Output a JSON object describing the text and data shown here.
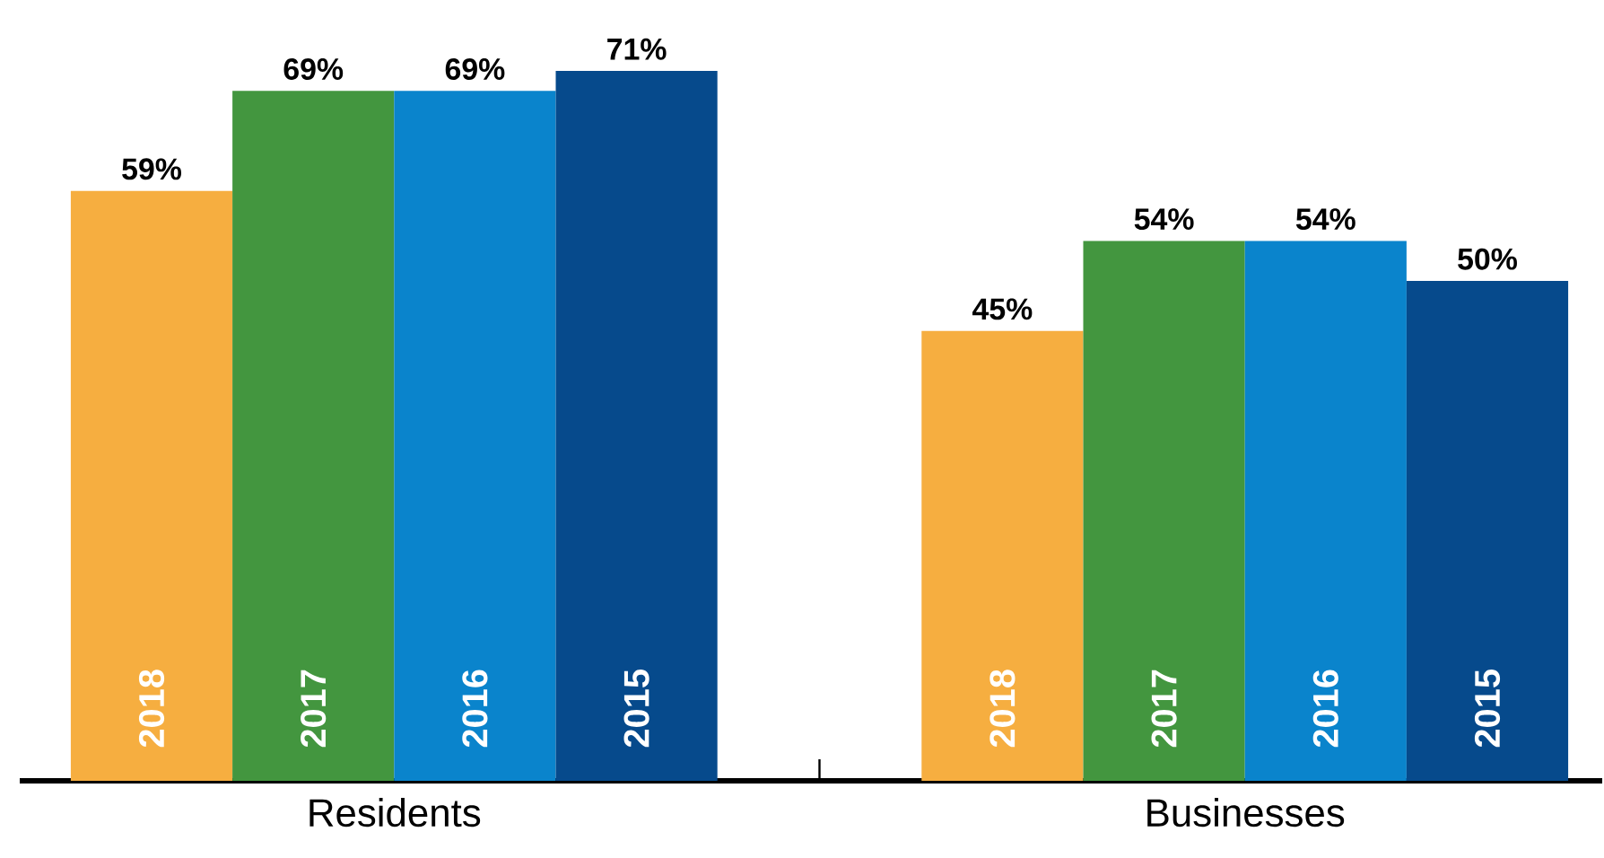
{
  "chart_data": {
    "type": "bar",
    "categories": [
      "Residents",
      "Businesses"
    ],
    "series": [
      {
        "name": "2018",
        "color": "#f6ae40",
        "values": [
          59,
          45
        ],
        "value_labels": [
          "59%",
          "45%"
        ]
      },
      {
        "name": "2017",
        "color": "#43963f",
        "values": [
          69,
          54
        ],
        "value_labels": [
          "69%",
          "54%"
        ]
      },
      {
        "name": "2016",
        "color": "#0a84cc",
        "values": [
          69,
          54
        ],
        "value_labels": [
          "69%",
          "54%"
        ]
      },
      {
        "name": "2015",
        "color": "#064a8c",
        "values": [
          71,
          50
        ],
        "value_labels": [
          "71%",
          "50%"
        ]
      }
    ]
  }
}
